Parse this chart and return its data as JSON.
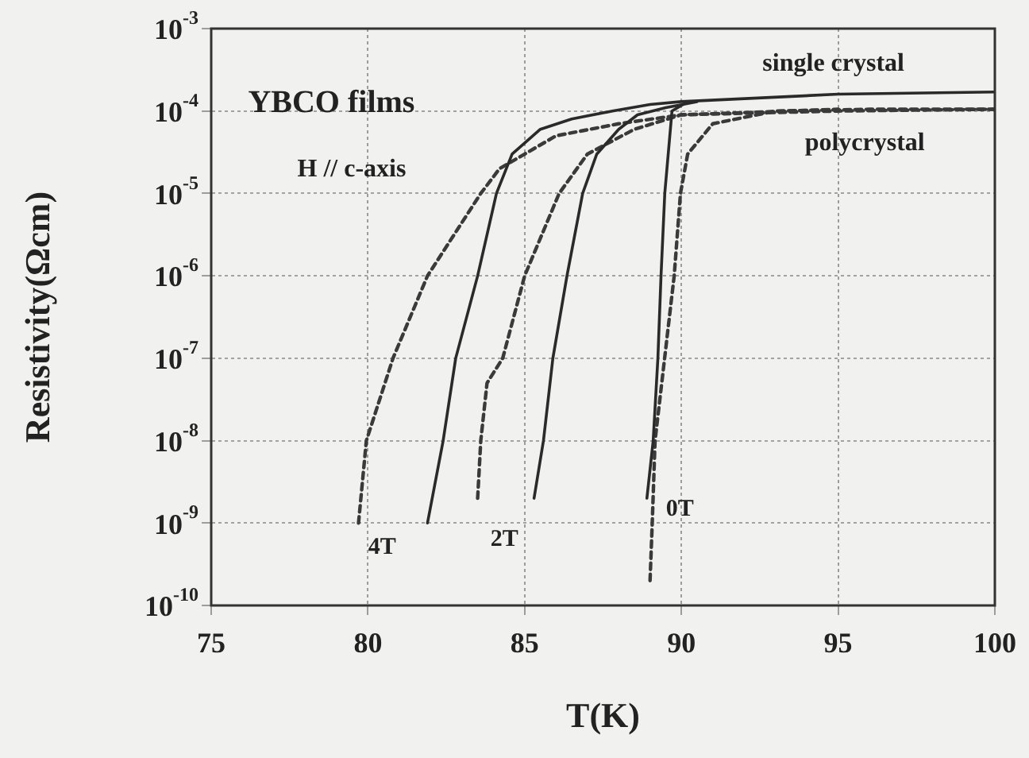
{
  "chart_data": {
    "type": "line",
    "xlabel": "T(K)",
    "ylabel": "Resistivity(Ωcm)",
    "xlim": [
      75,
      100
    ],
    "xticks": [
      75,
      80,
      85,
      90,
      95,
      100
    ],
    "ylim": [
      1e-10,
      0.001
    ],
    "yticks": [
      {
        "value": 1e-10,
        "label": "10$^{-10}$"
      },
      {
        "value": 1e-09,
        "label": "10$^{-9}$"
      },
      {
        "value": 1e-08,
        "label": "10$^{-8}$"
      },
      {
        "value": 1e-07,
        "label": "10$^{-7}$"
      },
      {
        "value": 1e-06,
        "label": "10$^{-6}$"
      },
      {
        "value": 1e-05,
        "label": "10$^{-5}$"
      },
      {
        "value": 0.0001,
        "label": "10$^{-4}$"
      },
      {
        "value": 0.001,
        "label": "10$^{-3}$"
      }
    ],
    "log": "y",
    "grid": true,
    "marker": "none",
    "series": [
      {
        "color": "#2a2a2a",
        "line_style": "solid",
        "x": [
          81.9,
          82.4,
          82.8,
          83.5,
          84.1,
          84.6,
          85.5,
          86.5,
          87.8,
          89,
          90,
          95,
          100
        ],
        "values": [
          1e-09,
          1e-08,
          1e-07,
          1e-06,
          1e-05,
          3e-05,
          6e-05,
          8e-05,
          0.0001,
          0.00012,
          0.00013,
          0.00016,
          0.00017
        ]
      },
      {
        "color": "#2a2a2a",
        "line_style": "solid",
        "x": [
          85.3,
          85.6,
          85.9,
          86.35,
          86.85,
          87.3,
          88,
          88.6,
          89.5,
          90.5
        ],
        "values": [
          2e-09,
          1e-08,
          1e-07,
          1e-06,
          1e-05,
          3e-05,
          6e-05,
          9e-05,
          0.00011,
          0.00013
        ]
      },
      {
        "color": "#2a2a2a",
        "line_style": "solid",
        "x": [
          88.9,
          89.1,
          89.25,
          89.35,
          89.47,
          89.7,
          90.2
        ],
        "values": [
          2e-09,
          1e-08,
          1e-07,
          1e-06,
          1e-05,
          0.0001,
          0.00013
        ]
      },
      {
        "color": "#3a3a3a",
        "line_style": "dashed",
        "x": [
          79.7,
          79.95,
          80.8,
          81.9,
          83.6,
          84.2,
          86,
          88,
          90,
          95,
          100
        ],
        "values": [
          1e-09,
          1e-08,
          1e-07,
          1e-06,
          1e-05,
          2e-05,
          5e-05,
          7e-05,
          9e-05,
          0.0001,
          0.000105
        ]
      },
      {
        "color": "#3a3a3a",
        "line_style": "dashed",
        "x": [
          83.5,
          83.6,
          83.8,
          84.3,
          85,
          86.1,
          87,
          88.5,
          90,
          95
        ],
        "values": [
          2e-09,
          1e-08,
          5e-08,
          1e-07,
          1e-06,
          1e-05,
          3e-05,
          6e-05,
          9e-05,
          0.000105
        ]
      },
      {
        "color": "#3a3a3a",
        "line_style": "dashed",
        "x": [
          89,
          89.07,
          89.16,
          89.77,
          89.97,
          90.2,
          91,
          93,
          96,
          100
        ],
        "values": [
          2e-10,
          1e-09,
          1e-08,
          1e-06,
          1e-05,
          3e-05,
          7e-05,
          0.0001,
          0.000105,
          0.000105
        ]
      }
    ],
    "annotations": [
      "YBCO films",
      "H // c-axis",
      "single crystal",
      "polycrystal",
      "4T",
      "2T",
      "0T"
    ]
  }
}
